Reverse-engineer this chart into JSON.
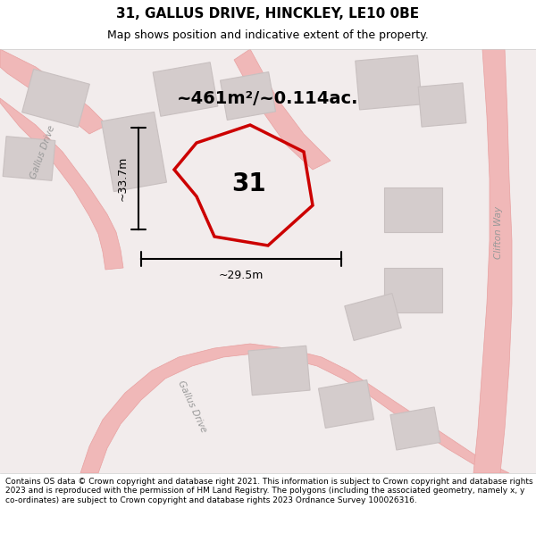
{
  "title": "31, GALLUS DRIVE, HINCKLEY, LE10 0BE",
  "subtitle": "Map shows position and indicative extent of the property.",
  "area_text": "~461m²/~0.114ac.",
  "number_label": "31",
  "dim_vertical": "~33.7m",
  "dim_horizontal": "~29.5m",
  "footer": "Contains OS data © Crown copyright and database right 2021. This information is subject to Crown copyright and database rights 2023 and is reproduced with the permission of HM Land Registry. The polygons (including the associated geometry, namely x, y co-ordinates) are subject to Crown copyright and database rights 2023 Ordnance Survey 100026316.",
  "bg_color": "#f5f0f0",
  "map_bg": "#f5f0f0",
  "road_color": "#f0b8b8",
  "building_color": "#d8d0d0",
  "plot_line_color": "#cc0000",
  "road_outline_color": "#e8a0a0",
  "clifton_way_label": "Clifton Way",
  "gallus_drive_label1": "Gallus Drive",
  "gallus_drive_label2": "Gallus Drive"
}
